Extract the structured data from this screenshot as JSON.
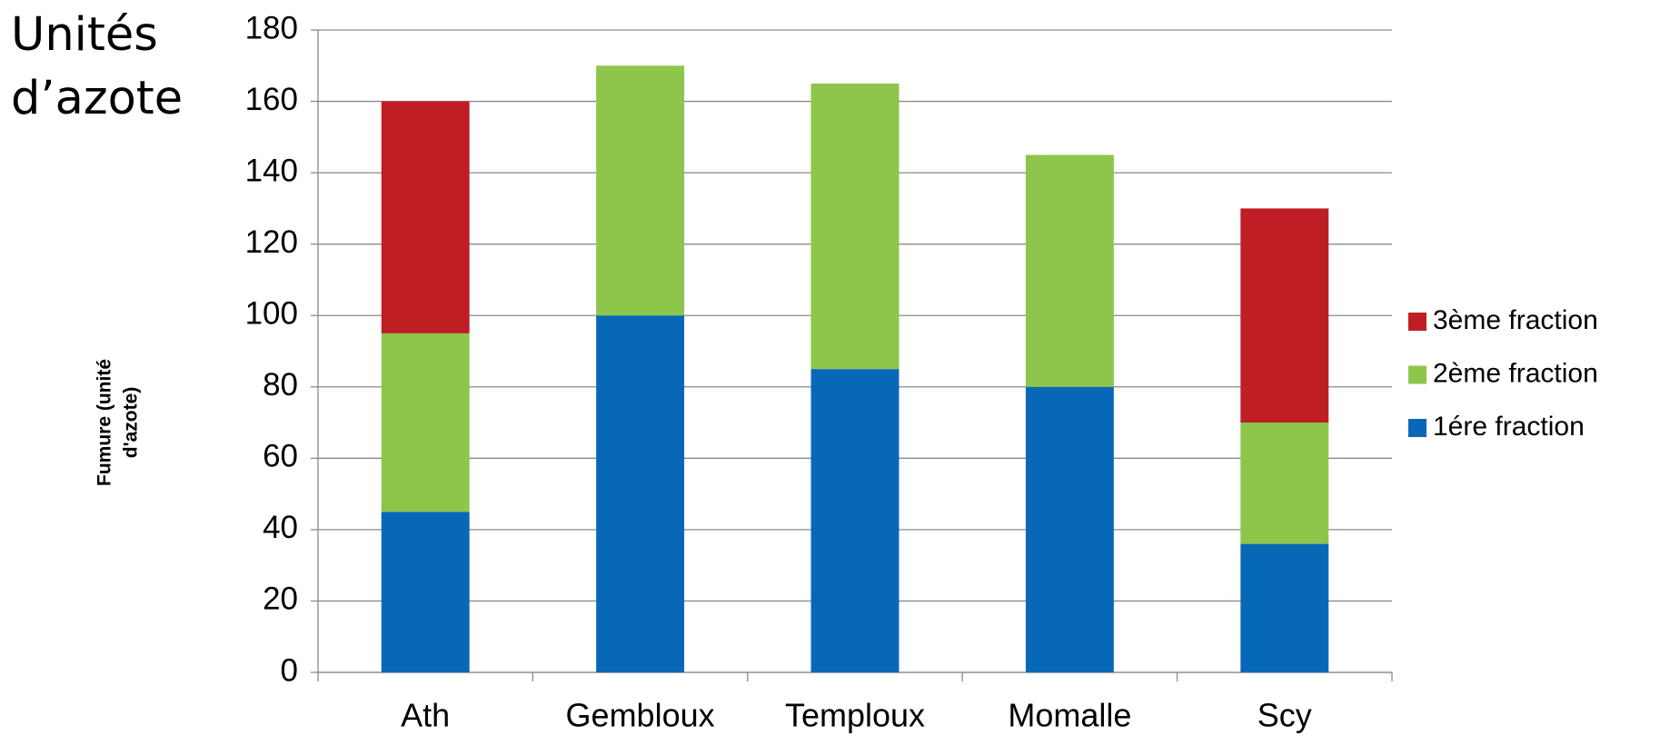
{
  "chart_data": {
    "type": "stacked_bar",
    "annotation": [
      "Unités",
      "d’azote"
    ],
    "y_label": [
      "Fumure (unité",
      "d'azote)"
    ],
    "categories": [
      "Ath",
      "Gembloux",
      "Temploux",
      "Momalle",
      "Scy"
    ],
    "series": [
      {
        "name": "1ére fraction",
        "color": "#0868b8",
        "values": [
          45,
          100,
          85,
          80,
          36
        ]
      },
      {
        "name": "2ème fraction",
        "color": "#8dc64a",
        "values": [
          50,
          70,
          80,
          65,
          34
        ]
      },
      {
        "name": "3ème fraction",
        "color": "#be1e24",
        "values": [
          65,
          0,
          0,
          0,
          60
        ]
      }
    ],
    "ylim": [
      0,
      180
    ],
    "yticks": [
      0,
      20,
      40,
      60,
      80,
      100,
      120,
      140,
      160,
      180
    ],
    "grid": true,
    "legend": "right"
  }
}
